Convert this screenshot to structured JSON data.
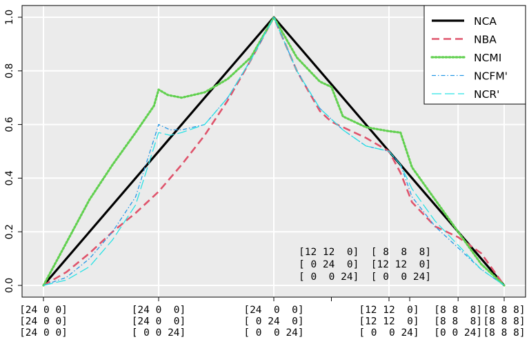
{
  "chart_data": {
    "type": "line",
    "xlim": [
      0,
      10
    ],
    "ylim": [
      -0.03,
      1.04
    ],
    "grid": true,
    "legend_position": "top-right",
    "y_ticks": [
      {
        "value": 0.0,
        "label": "0.0"
      },
      {
        "value": 0.2,
        "label": "0.2"
      },
      {
        "value": 0.4,
        "label": "0.4"
      },
      {
        "value": 0.6,
        "label": "0.6"
      },
      {
        "value": 0.8,
        "label": "0.8"
      },
      {
        "value": 1.0,
        "label": "1.0"
      }
    ],
    "x_ticks": [
      {
        "value": 0,
        "lines": [
          "[24 0 0]",
          "[24 0 0]",
          "[24 0 0]"
        ]
      },
      {
        "value": 2.5,
        "lines": [
          "[24 0  0]",
          "[24 0  0]",
          "[ 0 0 24]"
        ]
      },
      {
        "value": 5,
        "lines": [
          "[24  0  0]",
          "[ 0 24  0]",
          "[ 0  0 24]"
        ]
      },
      {
        "value": 7.5,
        "lines": [
          "[12 12  0]",
          "[12 12  0]",
          "[ 0  0 24]"
        ]
      },
      {
        "value": 9.0,
        "lines": [
          "[8 8  8]",
          "[8 8  8]",
          "[0 0 24]"
        ]
      },
      {
        "value": 10,
        "lines": [
          "[8 8 8]",
          "[8 8 8]",
          "[8 8 8]"
        ]
      }
    ],
    "minor_ticks": [
      6.25,
      7.95
    ],
    "annotation": [
      "[12 12  0]  [ 8  8  8]",
      "[ 0 24  0]  [12 12  0]",
      "[ 0  0 24]  [ 0  0 24]"
    ],
    "series": [
      {
        "name": "NCA",
        "color": "#000000",
        "dash": "solid",
        "width": 3.2,
        "x": [
          0,
          5,
          10
        ],
        "y": [
          0.0,
          1.0,
          0.0
        ]
      },
      {
        "name": "NBA",
        "color": "#df536b",
        "dash": "dashed",
        "width": 2.6,
        "x": [
          0,
          0.5,
          1,
          1.5,
          2,
          2.5,
          3,
          3.5,
          4,
          4.5,
          5,
          5.5,
          6,
          6.25,
          6.5,
          7,
          7.5,
          7.75,
          8,
          8.5,
          9,
          9.5,
          10
        ],
        "y": [
          0.0,
          0.05,
          0.12,
          0.2,
          0.27,
          0.35,
          0.45,
          0.56,
          0.69,
          0.84,
          1.0,
          0.8,
          0.65,
          0.61,
          0.59,
          0.55,
          0.5,
          0.42,
          0.31,
          0.22,
          0.18,
          0.12,
          0.0
        ]
      },
      {
        "name": "NCMI",
        "color": "#61d04f",
        "dash": "dotted",
        "width": 3.2,
        "x": [
          0,
          0.5,
          1,
          1.5,
          2,
          2.4,
          2.5,
          2.7,
          3,
          3.5,
          4,
          4.5,
          5,
          5.5,
          6,
          6.25,
          6.5,
          7,
          7.5,
          7.75,
          8,
          8.5,
          9,
          9.5,
          10
        ],
        "y": [
          0.0,
          0.16,
          0.32,
          0.45,
          0.57,
          0.67,
          0.73,
          0.71,
          0.7,
          0.72,
          0.77,
          0.85,
          1.0,
          0.85,
          0.76,
          0.74,
          0.63,
          0.59,
          0.575,
          0.57,
          0.44,
          0.32,
          0.2,
          0.08,
          0.0
        ]
      },
      {
        "name": "NCFM'",
        "color": "#2297e6",
        "dash": "dashdot",
        "width": 1.3,
        "x": [
          0,
          0.5,
          1,
          1.5,
          2,
          2.5,
          2.75,
          3,
          3.5,
          4,
          4.5,
          5,
          5.5,
          6,
          6.5,
          7,
          7.5,
          7.75,
          8,
          8.5,
          9,
          9.5,
          10
        ],
        "y": [
          0.0,
          0.03,
          0.1,
          0.2,
          0.33,
          0.6,
          0.58,
          0.58,
          0.6,
          0.7,
          0.84,
          1.0,
          0.8,
          0.66,
          0.58,
          0.52,
          0.5,
          0.45,
          0.33,
          0.22,
          0.14,
          0.06,
          0.0
        ]
      },
      {
        "name": "NCR'",
        "color": "#28e2e5",
        "dash": "longdash",
        "width": 1.3,
        "x": [
          0,
          0.5,
          1,
          1.5,
          2,
          2.5,
          2.75,
          3,
          3.5,
          4,
          4.5,
          5,
          5.5,
          6,
          6.5,
          7,
          7.5,
          7.75,
          8,
          8.5,
          9,
          9.5,
          10
        ],
        "y": [
          0.0,
          0.02,
          0.07,
          0.17,
          0.3,
          0.57,
          0.56,
          0.57,
          0.6,
          0.7,
          0.84,
          1.0,
          0.8,
          0.66,
          0.58,
          0.52,
          0.5,
          0.45,
          0.36,
          0.24,
          0.15,
          0.06,
          0.0
        ]
      }
    ]
  }
}
